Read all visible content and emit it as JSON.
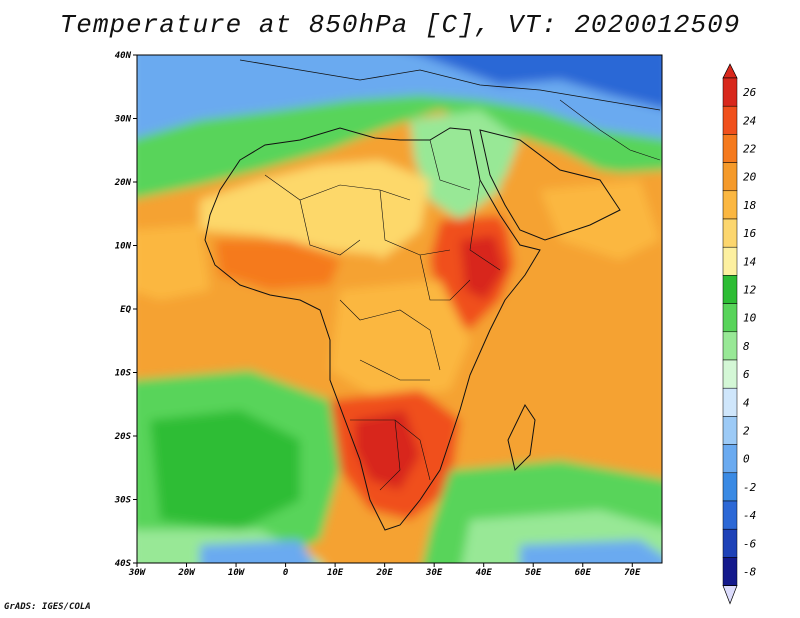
{
  "title": "Temperature at 850hPa [C], VT: 2020012509",
  "footer": "GrADS: IGES/COLA",
  "axes": {
    "lat_labels": [
      "40N",
      "30N",
      "20N",
      "10N",
      "EQ",
      "10S",
      "20S",
      "30S",
      "40S"
    ],
    "lon_labels": [
      "30W",
      "20W",
      "10W",
      "0",
      "10E",
      "20E",
      "30E",
      "40E",
      "50E",
      "60E",
      "70E"
    ]
  },
  "colorbar": {
    "labels": [
      "26",
      "24",
      "22",
      "20",
      "18",
      "16",
      "14",
      "12",
      "10",
      "8",
      "6",
      "4",
      "2",
      "0",
      "-2",
      "-4",
      "-6",
      "-8"
    ],
    "colors": [
      "#d8281c",
      "#f0501c",
      "#f57a1e",
      "#f59a2a",
      "#fbb741",
      "#fcd66e",
      "#fdf0a0",
      "#2dbd34",
      "#58d45a",
      "#98e896",
      "#d4f7d6",
      "#cfe6fb",
      "#9ccaf6",
      "#6aaaf0",
      "#3a8ae4",
      "#2c68d6",
      "#1e42b8",
      "#141a8c"
    ],
    "under_color": "#dcdcfc"
  },
  "map_colors": {
    "ocean_warm": "#f5a232",
    "ocean_mid": "#fbb741",
    "sahara": "#fdd86a",
    "green": "#58d45a",
    "dark_green": "#2dbd34",
    "light_green": "#98e896",
    "pale": "#d4f7d6",
    "blue": "#6aaaf0",
    "dark_blue": "#2c68d6",
    "hot": "#f0501c",
    "very_hot": "#d8281c"
  }
}
